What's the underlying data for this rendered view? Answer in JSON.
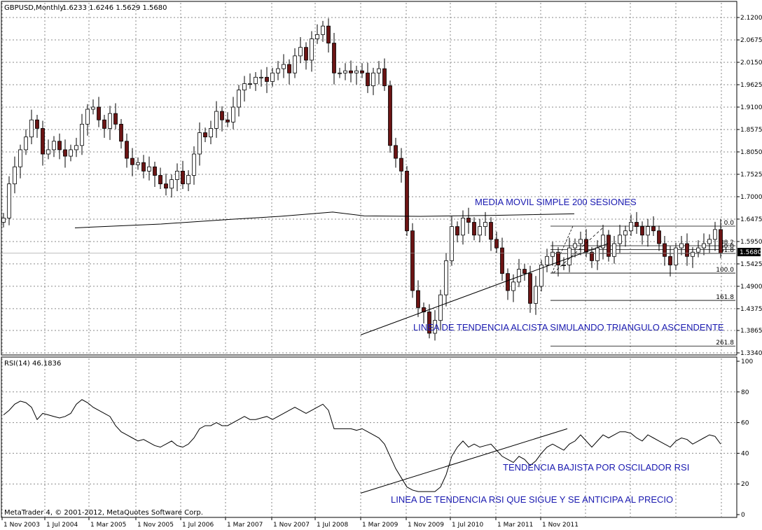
{
  "header": {
    "symbol": "GBPUSD,Monthly",
    "ohlc": "1.6233 1.6246 1.5629 1.5680"
  },
  "rsi_header": "RSI(14) 46.1836",
  "copyright": "MetaTrader 4, © 2001-2012, MetaQuotes Software Corp.",
  "current_price": "1.5680",
  "colors": {
    "bull": "#ffffff",
    "bear": "#6b1414",
    "annotation": "#1a1ab0",
    "current_box": "#000000"
  },
  "annotations": {
    "sma": "MEDIA MOVIL SIMPLE 200 SESIONES",
    "trend": "LINEA DE TENDENCIA ALCISTA SIMULANDO TRIANGULO ASCENDENTE",
    "rsi_down": "TENDENCIA BAJISTA POR OSCILADOR RSI",
    "rsi_trend": "LINEA DE TENDENCIA RSI QUE SIGUE Y SE ANTICIPA AL PRECIO"
  },
  "chart_data": [
    {
      "type": "candlestick",
      "price_ticks": [
        "2.1200",
        "2.0675",
        "2.0150",
        "1.9625",
        "1.9100",
        "1.8575",
        "1.8050",
        "1.7525",
        "1.7000",
        "1.6475",
        "1.5950",
        "1.5425",
        "1.4900",
        "1.4375",
        "1.3865",
        "1.3340"
      ],
      "x_ticks": [
        "1 Nov 2003",
        "1 Jul 2004",
        "1 Mar 2005",
        "1 Nov 2005",
        "1 Jul 2006",
        "1 Mar 2007",
        "1 Nov 2007",
        "1 Jul 2008",
        "1 Mar 2009",
        "1 Nov 2009",
        "1 Jul 2010",
        "1 Mar 2011",
        "1 Nov 2011"
      ],
      "ylim": [
        1.334,
        2.12
      ],
      "fibonacci": [
        {
          "label": "0.0",
          "price": 1.631
        },
        {
          "label": "38.2",
          "price": 1.585
        },
        {
          "label": "50.0",
          "price": 1.576
        },
        {
          "label": "61.8",
          "price": 1.567
        },
        {
          "label": "100.0",
          "price": 1.521
        },
        {
          "label": "161.8",
          "price": 1.457
        },
        {
          "label": "261.8",
          "price": 1.35
        }
      ],
      "closes": [
        1.65,
        1.73,
        1.77,
        1.81,
        1.84,
        1.88,
        1.86,
        1.8,
        1.81,
        1.83,
        1.81,
        1.795,
        1.81,
        1.82,
        1.87,
        1.905,
        1.91,
        1.88,
        1.86,
        1.895,
        1.87,
        1.83,
        1.79,
        1.775,
        1.78,
        1.76,
        1.77,
        1.75,
        1.73,
        1.72,
        1.74,
        1.76,
        1.73,
        1.75,
        1.8,
        1.85,
        1.84,
        1.86,
        1.9,
        1.88,
        1.875,
        1.91,
        1.95,
        1.965,
        1.965,
        1.98,
        1.98,
        1.97,
        1.99,
        2.0,
        2.01,
        1.99,
        2.03,
        2.05,
        2.02,
        2.07,
        2.08,
        2.1,
        2.06,
        1.99,
        1.99,
        1.995,
        1.99,
        1.995,
        1.99,
        1.96,
        1.99,
        2.0,
        1.96,
        1.82,
        1.79,
        1.76,
        1.62,
        1.48,
        1.44,
        1.43,
        1.38,
        1.41,
        1.47,
        1.55,
        1.63,
        1.61,
        1.65,
        1.64,
        1.61,
        1.63,
        1.64,
        1.6,
        1.58,
        1.52,
        1.48,
        1.5,
        1.53,
        1.52,
        1.45,
        1.49,
        1.54,
        1.56,
        1.57,
        1.54,
        1.54,
        1.58,
        1.59,
        1.6,
        1.57,
        1.55,
        1.58,
        1.61,
        1.56,
        1.59,
        1.61,
        1.62,
        1.64,
        1.63,
        1.61,
        1.63,
        1.62,
        1.59,
        1.56,
        1.54,
        1.58,
        1.59,
        1.56,
        1.57,
        1.58,
        1.59,
        1.6,
        1.623,
        1.568
      ],
      "sma200": [
        [
          1.627,
          107
        ],
        [
          1.636,
          230
        ],
        [
          1.647,
          330
        ],
        [
          1.654,
          400
        ],
        [
          1.662,
          460
        ],
        [
          1.664,
          475
        ],
        [
          1.655,
          520
        ],
        [
          1.654,
          600
        ],
        [
          1.656,
          700
        ],
        [
          1.66,
          820
        ]
      ]
    },
    {
      "type": "line",
      "name": "RSI(14)",
      "value": 46.1836,
      "ylim": [
        0,
        100
      ],
      "y_ticks": [
        "100",
        "80",
        "60",
        "40",
        "20",
        "0"
      ],
      "values": [
        65,
        68,
        72,
        74,
        73,
        70,
        62,
        66,
        65,
        64,
        63,
        64,
        66,
        72,
        75,
        73,
        70,
        68,
        66,
        64,
        58,
        54,
        52,
        50,
        48,
        49,
        47,
        45,
        44,
        46,
        48,
        45,
        44,
        46,
        50,
        56,
        58,
        58,
        60,
        58,
        58,
        60,
        62,
        64,
        62,
        62,
        63,
        64,
        62,
        64,
        66,
        68,
        70,
        68,
        66,
        68,
        70,
        72,
        68,
        56,
        56,
        56,
        56,
        55,
        56,
        54,
        52,
        50,
        46,
        38,
        30,
        24,
        18,
        16,
        15,
        15,
        15,
        15,
        18,
        26,
        38,
        44,
        48,
        44,
        46,
        44,
        45,
        46,
        42,
        38,
        36,
        34,
        38,
        36,
        32,
        35,
        40,
        44,
        46,
        44,
        42,
        46,
        48,
        52,
        48,
        44,
        48,
        52,
        50,
        52,
        54,
        54,
        53,
        50,
        48,
        52,
        50,
        48,
        46,
        44,
        48,
        50,
        49,
        46,
        48,
        50,
        52,
        51,
        46
      ]
    }
  ]
}
